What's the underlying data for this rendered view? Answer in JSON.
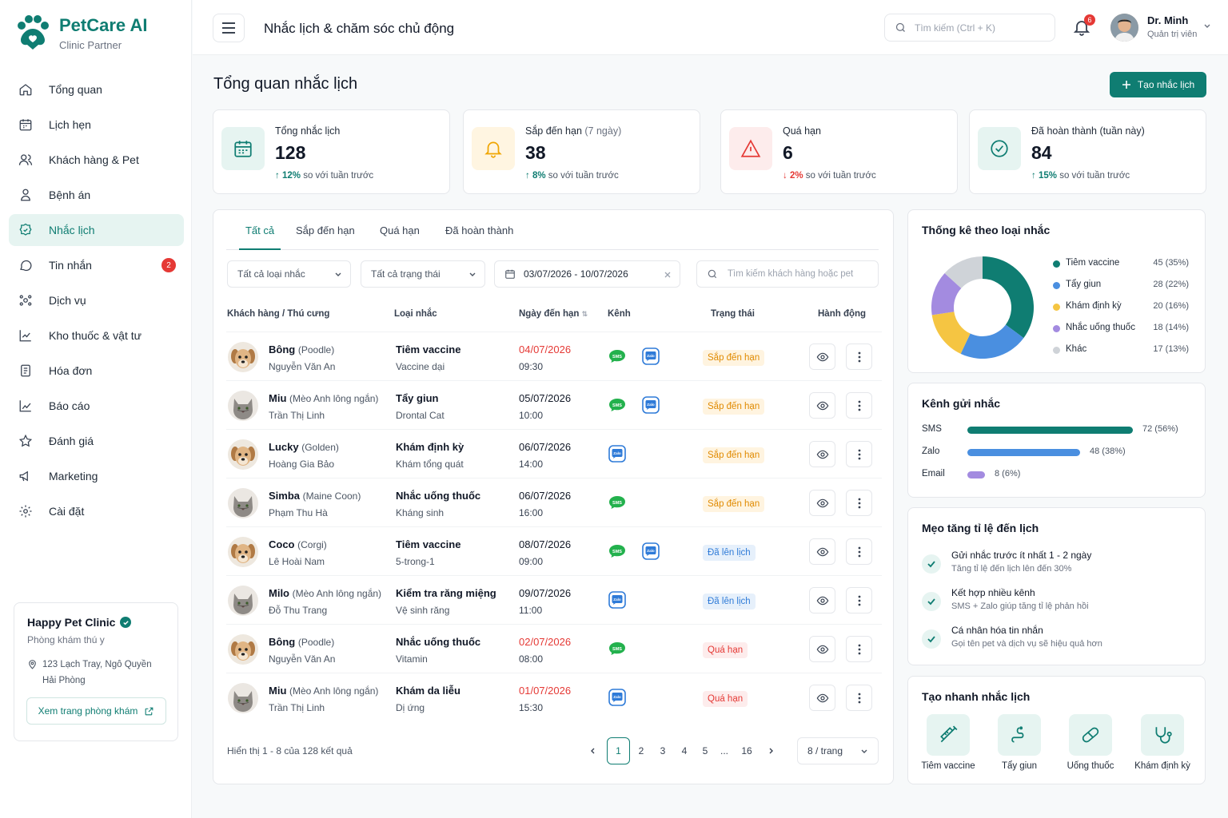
{
  "brand": {
    "name": "PetCare AI",
    "tagline": "Clinic Partner"
  },
  "sidebar": {
    "items": [
      {
        "label": "Tổng quan",
        "icon": "home-icon"
      },
      {
        "label": "Lịch hẹn",
        "icon": "calendar-icon"
      },
      {
        "label": "Khách hàng & Pet",
        "icon": "users-icon"
      },
      {
        "label": "Bệnh án",
        "icon": "patient-icon"
      },
      {
        "label": "Nhắc lịch",
        "icon": "reminder-icon",
        "active": true
      },
      {
        "label": "Tin nhắn",
        "icon": "chat-icon",
        "badge": "2"
      },
      {
        "label": "Dịch vụ",
        "icon": "services-icon"
      },
      {
        "label": "Kho thuốc & vật tư",
        "icon": "inventory-icon"
      },
      {
        "label": "Hóa đơn",
        "icon": "invoice-icon"
      },
      {
        "label": "Báo cáo",
        "icon": "report-icon"
      },
      {
        "label": "Đánh giá",
        "icon": "star-icon"
      },
      {
        "label": "Marketing",
        "icon": "megaphone-icon"
      },
      {
        "label": "Cài đặt",
        "icon": "gear-icon"
      }
    ]
  },
  "clinic": {
    "name": "Happy Pet Clinic",
    "type": "Phòng khám thú y",
    "address_line1": "123 Lạch Tray, Ngô Quyền",
    "address_line2": "Hải Phòng",
    "link_label": "Xem trang phòng khám"
  },
  "header": {
    "title": "Nhắc lịch & chăm sóc chủ động",
    "search_placeholder": "Tìm kiếm (Ctrl + K)",
    "notif_count": "6",
    "user_name": "Dr. Minh",
    "user_role": "Quản trị viên"
  },
  "page": {
    "title": "Tổng quan nhắc lịch",
    "create_label": "Tạo nhắc lịch"
  },
  "stats": [
    {
      "label": "Tổng nhắc lịch",
      "label_extra": "",
      "value": "128",
      "change": "12%",
      "dir": "up",
      "compare": "so với tuần trước",
      "icon": "calendar-icon",
      "color": "#0f7d72",
      "bg": "#e6f4f1"
    },
    {
      "label": "Sắp đến hạn",
      "label_extra": "(7 ngày)",
      "value": "38",
      "change": "8%",
      "dir": "up",
      "compare": "so với tuần trước",
      "icon": "bell-icon",
      "color": "#f0a500",
      "bg": "#fff5e1"
    },
    {
      "label": "Quá hạn",
      "label_extra": "",
      "value": "6",
      "change": "2%",
      "dir": "down",
      "compare": "so với tuần trước",
      "icon": "alert-icon",
      "color": "#e53935",
      "bg": "#fdecec"
    },
    {
      "label": "Đã hoàn thành (tuần này)",
      "label_extra": "",
      "value": "84",
      "change": "15%",
      "dir": "up",
      "compare": "so với tuần trước",
      "icon": "check-circle-icon",
      "color": "#0f7d72",
      "bg": "#e6f4f1"
    }
  ],
  "tabs": [
    "Tất cả",
    "Sắp đến hạn",
    "Quá hạn",
    "Đã hoàn thành"
  ],
  "filters": {
    "type": "Tất cả loại nhắc",
    "status": "Tất cả trạng thái",
    "date_range": "03/07/2026 - 10/07/2026",
    "search_placeholder": "Tìm kiếm khách hàng hoặc pet"
  },
  "table": {
    "headers": [
      "Khách hàng / Thú cưng",
      "Loại nhắc",
      "Ngày đến hạn",
      "Kênh",
      "Trạng thái",
      "Hành động"
    ],
    "rows": [
      {
        "pet": "Bông",
        "breed": "(Poodle)",
        "owner": "Nguyễn Văn An",
        "type": "Tiêm vaccine",
        "sub": "Vaccine dại",
        "date": "04/07/2026",
        "time": "09:30",
        "overdue": true,
        "channels": [
          "sms",
          "zalo"
        ],
        "status": "Sắp đến hạn",
        "status_kind": "soon",
        "animal": "dog"
      },
      {
        "pet": "Miu",
        "breed": "(Mèo Anh lông ngắn)",
        "owner": "Trần Thị Linh",
        "type": "Tẩy giun",
        "sub": "Drontal Cat",
        "date": "05/07/2026",
        "time": "10:00",
        "overdue": false,
        "channels": [
          "sms",
          "zalo"
        ],
        "status": "Sắp đến hạn",
        "status_kind": "soon",
        "animal": "cat"
      },
      {
        "pet": "Lucky",
        "breed": "(Golden)",
        "owner": "Hoàng Gia Bảo",
        "type": "Khám định kỳ",
        "sub": "Khám tổng quát",
        "date": "06/07/2026",
        "time": "14:00",
        "overdue": false,
        "channels": [
          "zalo"
        ],
        "status": "Sắp đến hạn",
        "status_kind": "soon",
        "animal": "dog"
      },
      {
        "pet": "Simba",
        "breed": "(Maine Coon)",
        "owner": "Phạm Thu Hà",
        "type": "Nhắc uống thuốc",
        "sub": "Kháng sinh",
        "date": "06/07/2026",
        "time": "16:00",
        "overdue": false,
        "channels": [
          "sms"
        ],
        "status": "Sắp đến hạn",
        "status_kind": "soon",
        "animal": "cat"
      },
      {
        "pet": "Coco",
        "breed": "(Corgi)",
        "owner": "Lê Hoài Nam",
        "type": "Tiêm vaccine",
        "sub": "5-trong-1",
        "date": "08/07/2026",
        "time": "09:00",
        "overdue": false,
        "channels": [
          "sms",
          "zalo"
        ],
        "status": "Đã lên lịch",
        "status_kind": "done",
        "animal": "dog"
      },
      {
        "pet": "Milo",
        "breed": "(Mèo Anh lông ngắn)",
        "owner": "Đỗ Thu Trang",
        "type": "Kiểm tra răng miệng",
        "sub": "Vệ sinh răng",
        "date": "09/07/2026",
        "time": "11:00",
        "overdue": false,
        "channels": [
          "zalo"
        ],
        "status": "Đã lên lịch",
        "status_kind": "done",
        "animal": "cat"
      },
      {
        "pet": "Bông",
        "breed": "(Poodle)",
        "owner": "Nguyễn Văn An",
        "type": "Nhắc uống thuốc",
        "sub": "Vitamin",
        "date": "02/07/2026",
        "time": "08:00",
        "overdue": true,
        "channels": [
          "sms"
        ],
        "status": "Quá hạn",
        "status_kind": "late",
        "animal": "dog"
      },
      {
        "pet": "Miu",
        "breed": "(Mèo Anh lông ngắn)",
        "owner": "Trần Thị Linh",
        "type": "Khám da liễu",
        "sub": "Dị ứng",
        "date": "01/07/2026",
        "time": "15:30",
        "overdue": true,
        "channels": [
          "zalo"
        ],
        "status": "Quá hạn",
        "status_kind": "late",
        "animal": "cat"
      }
    ],
    "channel_labels": {
      "sms": "SMS",
      "zalo": "Zalo"
    }
  },
  "pagination": {
    "info": "Hiển thị 1 - 8 của 128 kết quả",
    "pages": [
      "1",
      "2",
      "3",
      "4",
      "5",
      "...",
      "16"
    ],
    "current": "1",
    "per_page": "8 / trang"
  },
  "stats_by_type": {
    "title": "Thống kê theo loại nhắc",
    "items": [
      {
        "label": "Tiêm vaccine",
        "value": "45 (35%)",
        "count": 45,
        "color": "#0f7d72"
      },
      {
        "label": "Tẩy giun",
        "value": "28 (22%)",
        "count": 28,
        "color": "#4a8fe0"
      },
      {
        "label": "Khám định kỳ",
        "value": "20 (16%)",
        "count": 20,
        "color": "#f5c542"
      },
      {
        "label": "Nhắc uống thuốc",
        "value": "18 (14%)",
        "count": 18,
        "color": "#a38be0"
      },
      {
        "label": "Khác",
        "value": "17 (13%)",
        "count": 17,
        "color": "#cfd3d8"
      }
    ]
  },
  "channels": {
    "title": "Kênh gửi nhắc",
    "items": [
      {
        "label": "SMS",
        "value": "72 (56%)",
        "share": 0.56,
        "color": "#0f7d72"
      },
      {
        "label": "Zalo",
        "value": "48 (38%)",
        "share": 0.38,
        "color": "#4a8fe0"
      },
      {
        "label": "Email",
        "value": "8 (6%)",
        "share": 0.06,
        "color": "#a38be0"
      }
    ]
  },
  "tips": {
    "title": "Mẹo tăng tỉ lệ đến lịch",
    "items": [
      {
        "title": "Gửi nhắc trước ít nhất 1 - 2 ngày",
        "sub": "Tăng tỉ lệ đến lịch lên đến 30%"
      },
      {
        "title": "Kết hợp nhiều kênh",
        "sub": "SMS + Zalo giúp tăng tỉ lệ phản hồi"
      },
      {
        "title": "Cá nhân hóa tin nhắn",
        "sub": "Gọi tên pet và dịch vụ sẽ hiệu quả hơn"
      }
    ]
  },
  "quick_create": {
    "title": "Tạo nhanh nhắc lịch",
    "items": [
      {
        "label": "Tiêm vaccine",
        "icon": "syringe-icon"
      },
      {
        "label": "Tẩy giun",
        "icon": "worm-icon"
      },
      {
        "label": "Uống thuốc",
        "icon": "pill-icon"
      },
      {
        "label": "Khám định kỳ",
        "icon": "stethoscope-icon"
      }
    ]
  }
}
